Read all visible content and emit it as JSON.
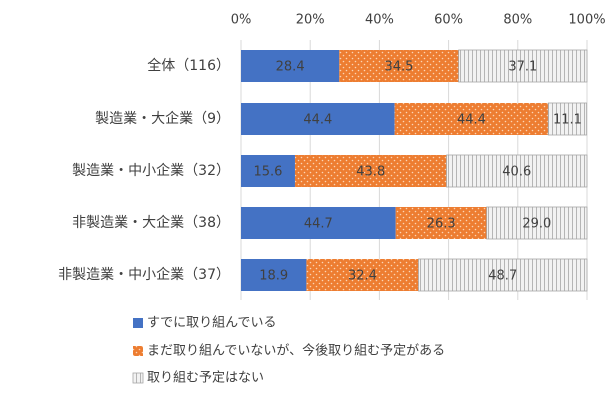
{
  "chart_data": {
    "type": "stacked-bar-horizontal",
    "categories": [
      "全体（116）",
      "製造業・大企業（9）",
      "製造業・中小企業（32）",
      "非製造業・大企業（38）",
      "非製造業・中小企業（37）"
    ],
    "series": [
      {
        "name": "すでに取り組んでいる",
        "color": "#4472c4",
        "values": [
          28.4,
          44.4,
          15.6,
          44.7,
          18.9
        ],
        "value_labels": [
          "28.4",
          "44.4",
          "15.6",
          "44.7",
          "18.9"
        ]
      },
      {
        "name": "まだ取り組んでいないが、今後取り組む予定がある",
        "color": "#ed7d31",
        "values": [
          34.5,
          44.4,
          43.8,
          26.3,
          32.4
        ],
        "value_labels": [
          "34.5",
          "44.4",
          "43.8",
          "26.3",
          "32.4"
        ]
      },
      {
        "name": "取り組む予定はない",
        "color": "#f2f2f2",
        "values": [
          37.1,
          11.1,
          40.6,
          29.0,
          48.7
        ],
        "value_labels": [
          "37.1",
          "11.1",
          "40.6",
          "29.0",
          "48.7"
        ]
      }
    ],
    "xlim": [
      0,
      100
    ],
    "xticks": [
      {
        "value": 0,
        "label": "0%"
      },
      {
        "value": 20,
        "label": "20%"
      },
      {
        "value": 40,
        "label": "40%"
      },
      {
        "value": 60,
        "label": "60%"
      },
      {
        "value": 80,
        "label": "80%"
      },
      {
        "value": 100,
        "label": "100%"
      }
    ],
    "grid": true
  }
}
